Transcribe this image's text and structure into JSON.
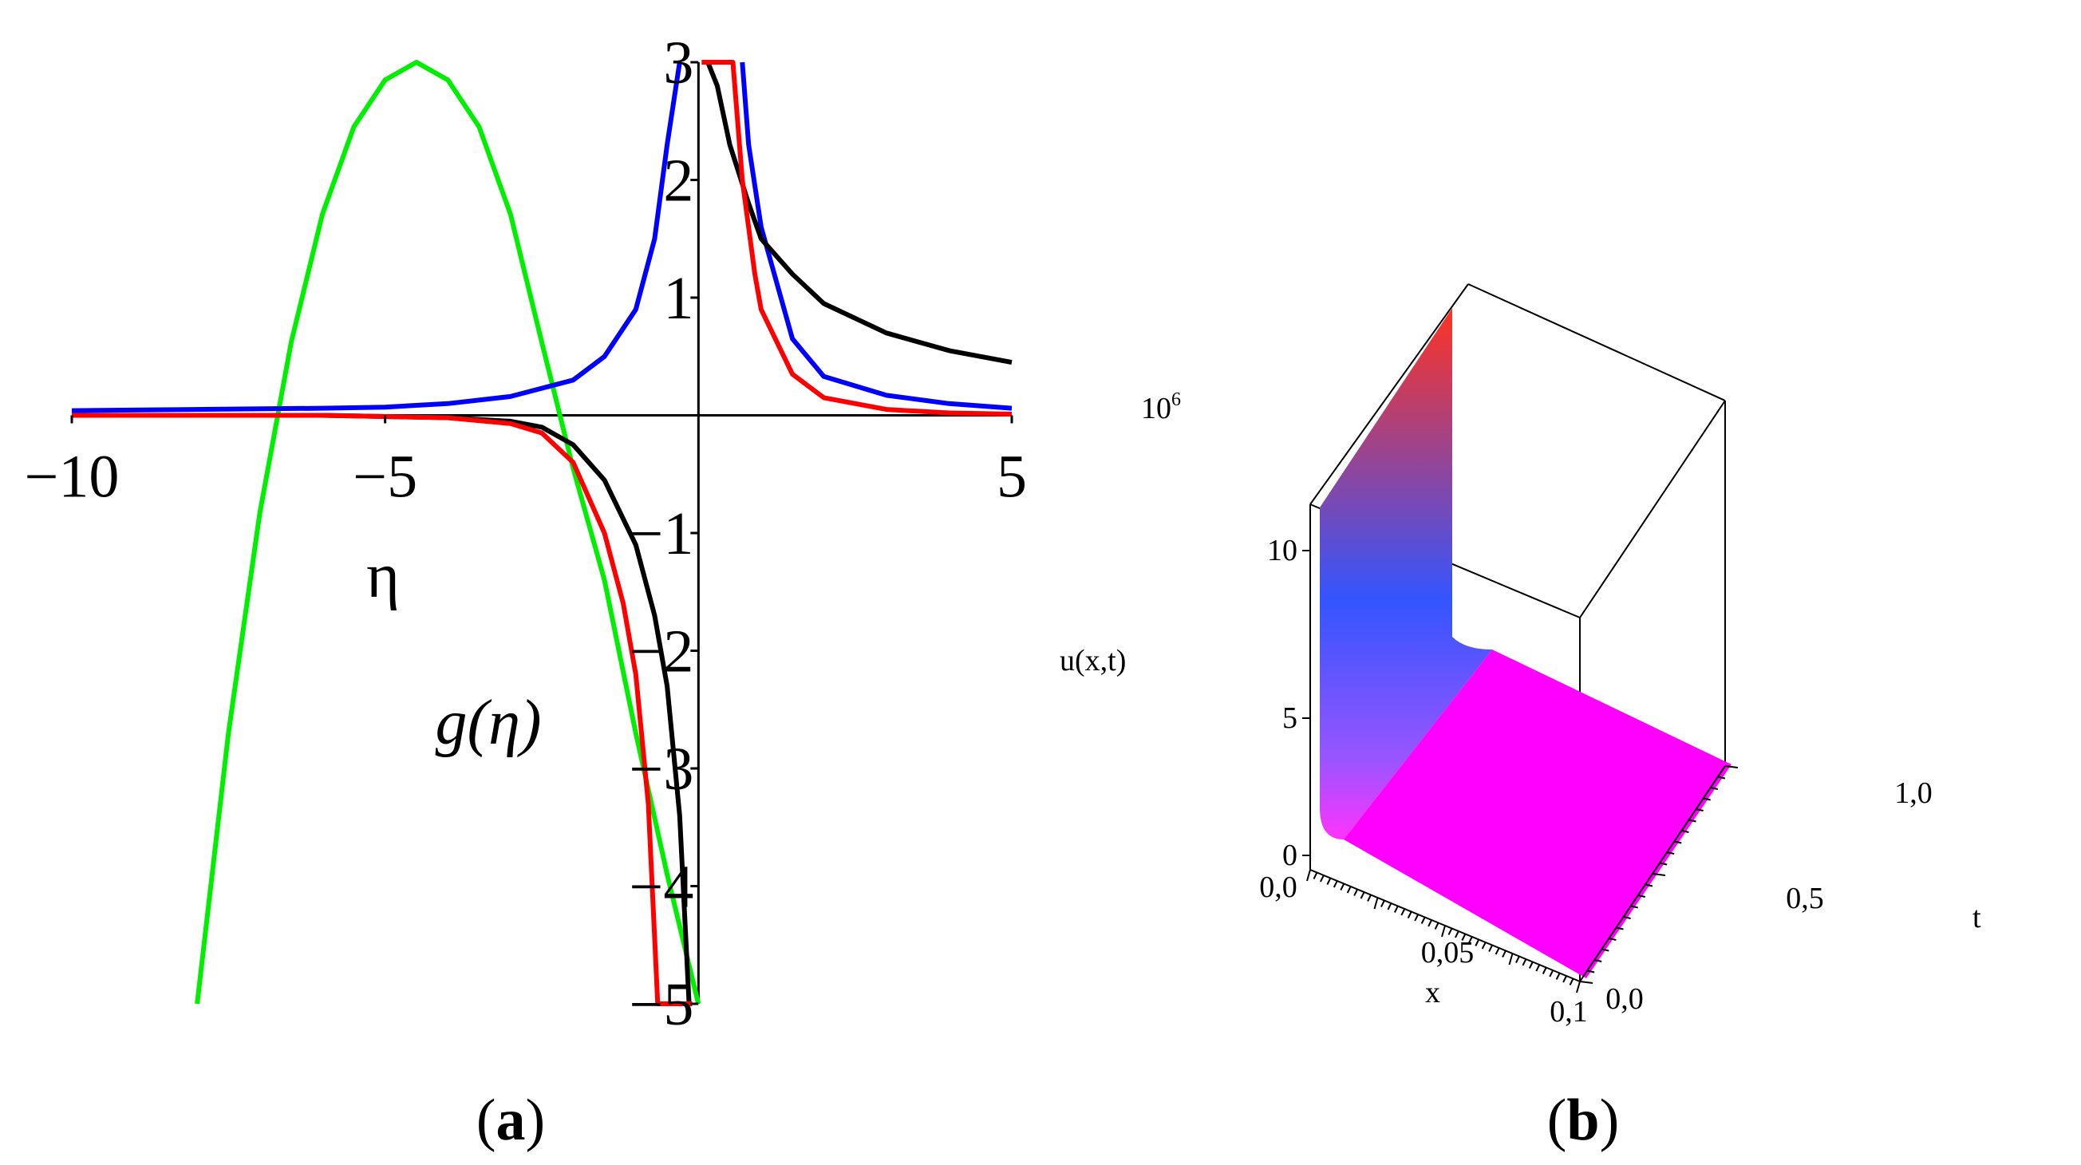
{
  "chart_data": [
    {
      "type": "line",
      "panel_label": "a",
      "xlabel": "η",
      "ylabel": "g(η)",
      "xlim": [
        -10,
        5
      ],
      "ylim": [
        -5,
        3
      ],
      "x_ticks": [
        -10,
        -5,
        5
      ],
      "x_tick_labels": [
        "−10",
        "−5",
        "5"
      ],
      "y_ticks": [
        3,
        2,
        1,
        -1,
        -2,
        -3,
        -4,
        -5
      ],
      "y_tick_labels": [
        "3",
        "2",
        "1",
        "−1",
        "−2",
        "−3",
        "−4",
        "−5"
      ],
      "grid": false,
      "legend": "none",
      "pole_x": 0,
      "series": [
        {
          "color": "#00ee00",
          "x": [
            -8.0,
            -7.5,
            -7.0,
            -6.5,
            -6.0,
            -5.5,
            -5.0,
            -4.5,
            -4.0,
            -3.5,
            -3.0,
            -2.5,
            -2.0,
            -1.5,
            -1.0,
            -0.5,
            0.0
          ],
          "values": [
            -5.0,
            -2.7,
            -0.83,
            0.62,
            1.71,
            2.45,
            2.85,
            3.0,
            2.85,
            2.45,
            1.71,
            0.62,
            -0.45,
            -1.4,
            -2.7,
            -3.9,
            -5.0
          ]
        },
        {
          "color": "#0000ff",
          "x": [
            -10,
            -8,
            -6,
            -5,
            -4,
            -3,
            -2,
            -1.5,
            -1.0,
            -0.7,
            -0.5,
            -0.3,
            0.7,
            0.8,
            1.0,
            1.5,
            2,
            3,
            4,
            5
          ],
          "values": [
            0.04,
            0.05,
            0.06,
            0.07,
            0.1,
            0.16,
            0.3,
            0.5,
            0.9,
            1.5,
            2.3,
            3.0,
            3.0,
            2.3,
            1.6,
            0.65,
            0.33,
            0.17,
            0.1,
            0.06
          ]
        },
        {
          "color": "#000000",
          "x": [
            -10,
            -6,
            -5,
            -4,
            -3,
            -2.5,
            -2.0,
            -1.5,
            -1.0,
            -0.7,
            -0.5,
            -0.3,
            -0.15,
            0.15,
            0.3,
            0.5,
            0.8,
            1.0,
            1.5,
            2,
            3,
            4,
            5
          ],
          "values": [
            0.0,
            0.0,
            -0.01,
            -0.02,
            -0.05,
            -0.1,
            -0.25,
            -0.55,
            -1.1,
            -1.7,
            -2.3,
            -3.4,
            -5.0,
            3.0,
            2.8,
            2.3,
            1.8,
            1.5,
            1.2,
            0.95,
            0.7,
            0.55,
            0.45
          ]
        },
        {
          "color": "#ff0000",
          "x": [
            -10,
            -6,
            -5,
            -4,
            -3,
            -2.5,
            -2.0,
            -1.5,
            -1.2,
            -1.0,
            -0.8,
            -0.65,
            -0.1,
            0.05,
            0.1,
            0.55,
            0.7,
            0.9,
            1.0,
            1.5,
            2,
            3,
            4,
            5
          ],
          "values": [
            0.0,
            0.0,
            -0.01,
            -0.02,
            -0.07,
            -0.15,
            -0.4,
            -1.0,
            -1.6,
            -2.2,
            -3.3,
            -5.0,
            -5.0,
            3.0,
            3.0,
            3.0,
            2.0,
            1.2,
            0.9,
            0.35,
            0.15,
            0.05,
            0.02,
            0.01
          ]
        }
      ]
    },
    {
      "type": "surface",
      "panel_label": "b",
      "xlabel": "x",
      "ylabel": "t",
      "zlabel": "u(x,t)",
      "z_multiplier_label": "10",
      "z_multiplier_exponent": "6",
      "xlim": [
        0.0,
        0.1
      ],
      "ylim": [
        0.0,
        1.0
      ],
      "zlim": [
        0,
        11
      ],
      "x_tick_labels": [
        "0,0",
        "0,05",
        "0,1"
      ],
      "y_tick_labels": [
        "0,0",
        "0,5",
        "1,0"
      ],
      "z_tick_labels": [
        "0",
        "5",
        "10"
      ],
      "colormap": [
        "#ff00ff",
        "#3333ff",
        "#ff2222"
      ]
    }
  ],
  "captions": {
    "a": {
      "open": "(",
      "letter": "a",
      "close": ")"
    },
    "b": {
      "open": "(",
      "letter": "b",
      "close": ")"
    }
  }
}
